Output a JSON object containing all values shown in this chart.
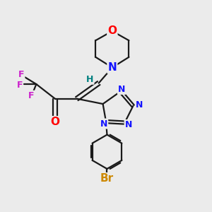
{
  "bg_color": "#ebebeb",
  "bond_color": "#1a1a1a",
  "bond_width": 1.6,
  "atom_colors": {
    "N": "#1414ff",
    "O": "#ff0000",
    "F": "#cc22cc",
    "Br": "#cc8800",
    "H": "#008080",
    "C": "#1a1a1a"
  },
  "font_size_large": 11,
  "font_size_med": 10,
  "font_size_small": 9
}
